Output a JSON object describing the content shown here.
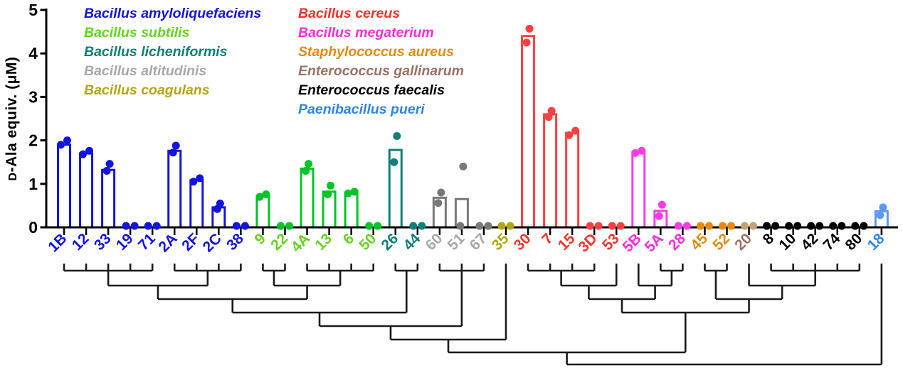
{
  "figure": {
    "ylabel_smallcap": "D",
    "ylabel_rest": "-Ala equiv. (μM)"
  },
  "chart_data": {
    "type": "bar",
    "title": "",
    "ylabel": "D-Ala equiv. (μM)",
    "ylim": [
      0,
      5
    ],
    "yticks": [
      0,
      1,
      2,
      3,
      4,
      5
    ],
    "grid": false,
    "legend_position": "top-left, two columns",
    "bar_style": "open outline bars with overlaid replicate dot points, GraphPad style",
    "species": [
      {
        "name": "Bacillus amyloliquefaciens",
        "color": "#1414E0",
        "bar_color": "#1414E0"
      },
      {
        "name": "Bacillus subtilis",
        "color": "#65D41E",
        "bar_color": "#00C428"
      },
      {
        "name": "Bacillus licheniformis",
        "color": "#0E8077",
        "bar_color": "#0E8077"
      },
      {
        "name": "Bacillus altitudinis",
        "color": "#A8A8A8",
        "bar_color": "#787878"
      },
      {
        "name": "Bacillus coagulans",
        "color": "#B4A613",
        "bar_color": "#B4A613"
      },
      {
        "name": "Bacillus cereus",
        "color": "#F3322B",
        "bar_color": "#F94040"
      },
      {
        "name": "Bacillus megaterium",
        "color": "#F62DE2",
        "bar_color": "#FA3CE8"
      },
      {
        "name": "Staphylococcus aureus",
        "color": "#E8890C",
        "bar_color": "#E8890C"
      },
      {
        "name": "Enterococcus gallinarum",
        "color": "#9A7264",
        "bar_color": "#C2A379"
      },
      {
        "name": "Enterococcus faecalis",
        "color": "#000000",
        "bar_color": "#000000"
      },
      {
        "name": "Paenibacillus pueri",
        "color": "#2E86E8",
        "bar_color": "#5B9BF5"
      }
    ],
    "categories": [
      {
        "id": "1B",
        "sp": 0,
        "bar": 1.9,
        "points": [
          1.9,
          2.0
        ]
      },
      {
        "id": "12",
        "sp": 0,
        "bar": 1.7,
        "points": [
          1.68,
          1.76
        ]
      },
      {
        "id": "33",
        "sp": 0,
        "bar": 1.32,
        "points": [
          1.3,
          1.46
        ]
      },
      {
        "id": "19",
        "sp": 0,
        "bar": 0,
        "points": [
          0,
          0
        ]
      },
      {
        "id": "71",
        "sp": 0,
        "bar": 0,
        "points": [
          0,
          0
        ]
      },
      {
        "id": "2A",
        "sp": 0,
        "bar": 1.76,
        "points": [
          1.72,
          1.88
        ]
      },
      {
        "id": "2F",
        "sp": 0,
        "bar": 1.08,
        "points": [
          1.05,
          1.13
        ]
      },
      {
        "id": "2C",
        "sp": 0,
        "bar": 0.46,
        "points": [
          0.42,
          0.55
        ]
      },
      {
        "id": "38",
        "sp": 0,
        "bar": 0,
        "points": [
          0,
          0
        ]
      },
      {
        "id": "9",
        "sp": 1,
        "bar": 0.72,
        "points": [
          0.7,
          0.76
        ]
      },
      {
        "id": "22",
        "sp": 1,
        "bar": 0,
        "points": [
          0,
          0
        ]
      },
      {
        "id": "4A",
        "sp": 1,
        "bar": 1.35,
        "points": [
          1.3,
          1.46
        ]
      },
      {
        "id": "13",
        "sp": 1,
        "bar": 0.82,
        "points": [
          0.76,
          0.96
        ]
      },
      {
        "id": "6",
        "sp": 1,
        "bar": 0.8,
        "points": [
          0.78,
          0.82
        ]
      },
      {
        "id": "50",
        "sp": 1,
        "bar": 0,
        "points": [
          0,
          0
        ]
      },
      {
        "id": "26",
        "sp": 2,
        "bar": 1.78,
        "points": [
          1.5,
          2.1
        ]
      },
      {
        "id": "44",
        "sp": 2,
        "bar": 0,
        "points": [
          0,
          0
        ]
      },
      {
        "id": "60",
        "sp": 3,
        "bar": 0.68,
        "points": [
          0.56,
          0.8
        ]
      },
      {
        "id": "51",
        "sp": 3,
        "bar": 0.65,
        "points": [
          0,
          1.4
        ]
      },
      {
        "id": "67",
        "sp": 3,
        "bar": 0,
        "points": [
          0,
          0
        ]
      },
      {
        "id": "35",
        "sp": 4,
        "bar": 0,
        "points": [
          0,
          0
        ]
      },
      {
        "id": "30",
        "sp": 5,
        "bar": 4.4,
        "points": [
          4.25,
          4.57
        ]
      },
      {
        "id": "7",
        "sp": 5,
        "bar": 2.6,
        "points": [
          2.54,
          2.68
        ]
      },
      {
        "id": "15",
        "sp": 5,
        "bar": 2.17,
        "points": [
          2.12,
          2.22
        ]
      },
      {
        "id": "3D",
        "sp": 5,
        "bar": 0,
        "points": [
          0,
          0
        ]
      },
      {
        "id": "53",
        "sp": 5,
        "bar": 0,
        "points": [
          0,
          0
        ]
      },
      {
        "id": "5B",
        "sp": 6,
        "bar": 1.73,
        "points": [
          1.71,
          1.76
        ]
      },
      {
        "id": "5A",
        "sp": 6,
        "bar": 0.38,
        "points": [
          0.26,
          0.52
        ]
      },
      {
        "id": "28",
        "sp": 6,
        "bar": 0,
        "points": [
          0,
          0
        ]
      },
      {
        "id": "45",
        "sp": 7,
        "bar": 0,
        "points": [
          0,
          0
        ]
      },
      {
        "id": "52",
        "sp": 7,
        "bar": 0,
        "points": [
          0,
          0
        ]
      },
      {
        "id": "20",
        "sp": 8,
        "bar": 0,
        "points": [
          0,
          0
        ]
      },
      {
        "id": "8",
        "sp": 9,
        "bar": 0,
        "points": [
          0,
          0
        ]
      },
      {
        "id": "10",
        "sp": 9,
        "bar": 0,
        "points": [
          0,
          0
        ]
      },
      {
        "id": "42",
        "sp": 9,
        "bar": 0,
        "points": [
          0,
          0
        ]
      },
      {
        "id": "74",
        "sp": 9,
        "bar": 0,
        "points": [
          0,
          0
        ]
      },
      {
        "id": "80",
        "sp": 9,
        "bar": 0,
        "points": [
          0,
          0
        ]
      },
      {
        "id": "18",
        "sp": 10,
        "bar": 0.37,
        "points": [
          0.28,
          0.46
        ]
      }
    ],
    "dendrogram": {
      "tip_y": 371,
      "levels_y": [
        381,
        402,
        421,
        440,
        459,
        478,
        496,
        513
      ],
      "line_color": "#1A1A1A",
      "tree": {
        "l": 8,
        "c": [
          {
            "l": 7,
            "c": [
              {
                "l": 6,
                "c": [
                  {
                    "l": 5,
                    "c": [
                      {
                        "l": 4,
                        "c": [
                          {
                            "l": 3,
                            "c": [
                              {
                                "l": 2,
                                "c": [
                                  {
                                    "l": 1,
                                    "c": [
                                      "1B",
                                      "12",
                                      "33",
                                      "19",
                                      "71"
                                    ]
                                  },
                                  {
                                    "l": 1,
                                    "c": [
                                      "2A",
                                      "2F",
                                      "2C",
                                      "38"
                                    ]
                                  }
                                ]
                              },
                              {
                                "l": 2,
                                "c": [
                                  {
                                    "l": 1,
                                    "c": [
                                      "9",
                                      "22"
                                    ]
                                  },
                                  {
                                    "l": 1,
                                    "c": [
                                      "4A",
                                      "13",
                                      "6",
                                      "50"
                                    ]
                                  }
                                ]
                              }
                            ]
                          },
                          {
                            "l": 1,
                            "c": [
                              "26",
                              "44"
                            ]
                          }
                        ]
                      },
                      {
                        "l": 1,
                        "c": [
                          "60",
                          "51",
                          "67"
                        ]
                      }
                    ]
                  },
                  "35"
                ]
              },
              {
                "l": 4,
                "c": [
                  {
                    "l": 3,
                    "c": [
                      {
                        "l": 2,
                        "c": [
                          {
                            "l": 1,
                            "c": [
                              "30",
                              "7",
                              "15",
                              "3D"
                            ]
                          },
                          "53"
                        ]
                      },
                      {
                        "l": 2,
                        "c": [
                          "5B",
                          {
                            "l": 1,
                            "c": [
                              "5A",
                              "28"
                            ]
                          }
                        ]
                      }
                    ]
                  },
                  {
                    "l": 3,
                    "c": [
                      {
                        "l": 1,
                        "c": [
                          "45",
                          "52"
                        ]
                      },
                      {
                        "l": 2,
                        "c": [
                          "20",
                          {
                            "l": 1,
                            "c": [
                              "8",
                              "10",
                              "42",
                              "74",
                              "80"
                            ]
                          }
                        ]
                      }
                    ]
                  }
                ]
              }
            ]
          },
          "18"
        ]
      }
    }
  }
}
